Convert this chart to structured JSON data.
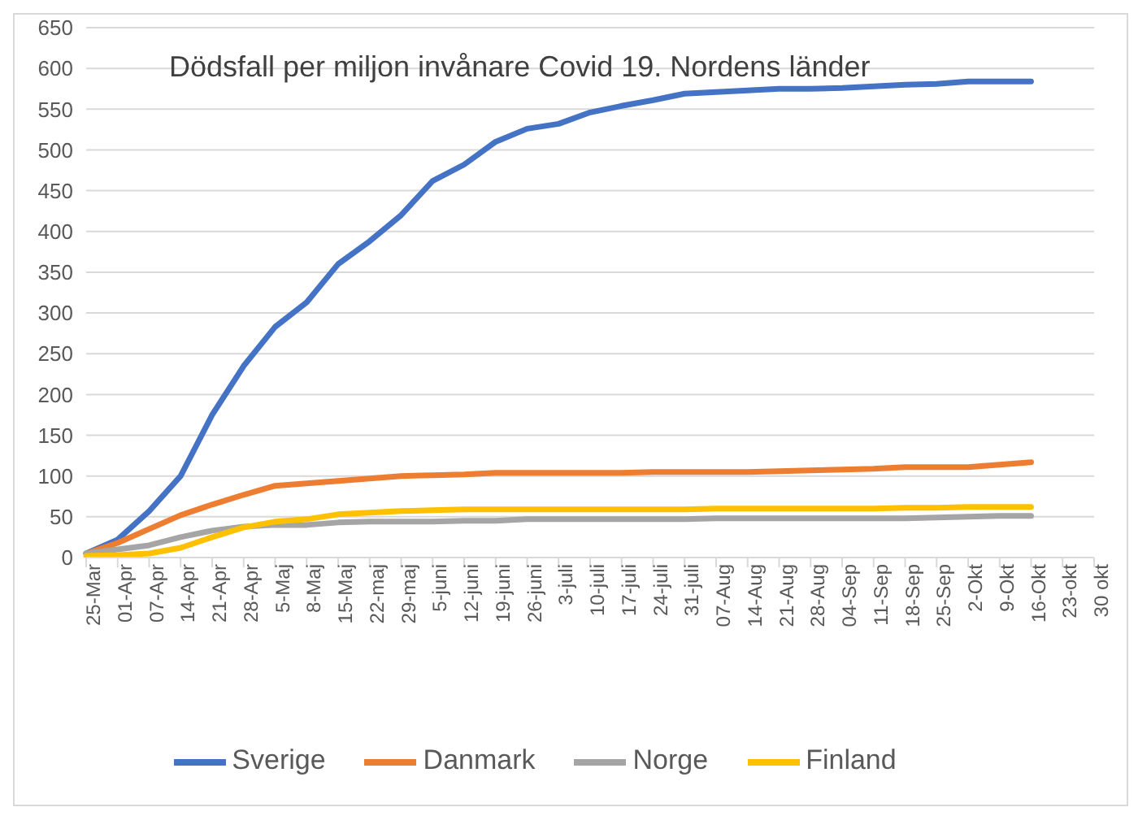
{
  "chart_data": {
    "type": "line",
    "title": "Dödsfall per miljon invånare Covid 19. Nordens länder",
    "categories": [
      "25-Mar",
      "01-Apr",
      "07-Apr",
      "14-Apr",
      "21-Apr",
      "28-Apr",
      "5-Maj",
      "8-Maj",
      "15-Maj",
      "22-maj",
      "29-maj",
      "5-juni",
      "12-juni",
      "19-juni",
      "26-juni",
      "3-juli",
      "10-juli",
      "17-juli",
      "24-juli",
      "31-juli",
      "07-Aug",
      "14-Aug",
      "21-Aug",
      "28-Aug",
      "04-Sep",
      "11-Sep",
      "18-Sep",
      "25-Sep",
      "2-Okt",
      "9-Okt",
      "16-Okt",
      "23-okt",
      "30 okt"
    ],
    "series": [
      {
        "name": "Sverige",
        "color": "#4472c4",
        "values": [
          5,
          22,
          57,
          100,
          175,
          235,
          283,
          313,
          360,
          388,
          420,
          462,
          482,
          510,
          526,
          532,
          546,
          554,
          561,
          569,
          571,
          573,
          575,
          575,
          576,
          578,
          580,
          581,
          584,
          584,
          584,
          null,
          null
        ]
      },
      {
        "name": "Danmark",
        "color": "#ed7d31",
        "values": [
          5,
          18,
          35,
          52,
          65,
          77,
          88,
          91,
          94,
          97,
          100,
          101,
          102,
          104,
          104,
          104,
          104,
          104,
          105,
          105,
          105,
          105,
          106,
          107,
          108,
          109,
          111,
          111,
          111,
          114,
          117,
          null,
          null
        ]
      },
      {
        "name": "Norge",
        "color": "#a5a5a5",
        "values": [
          5,
          10,
          15,
          25,
          33,
          38,
          40,
          40,
          43,
          44,
          44,
          44,
          45,
          45,
          47,
          47,
          47,
          47,
          47,
          47,
          48,
          48,
          48,
          48,
          48,
          48,
          48,
          49,
          50,
          51,
          51,
          null,
          null
        ]
      },
      {
        "name": "Finland",
        "color": "#ffc000",
        "values": [
          2,
          3,
          5,
          12,
          25,
          37,
          44,
          47,
          53,
          55,
          57,
          58,
          59,
          59,
          59,
          59,
          59,
          59,
          59,
          59,
          60,
          60,
          60,
          60,
          60,
          60,
          61,
          61,
          62,
          62,
          62,
          null,
          null
        ]
      }
    ],
    "ylim": [
      0,
      650
    ],
    "yticks": [
      0,
      50,
      100,
      150,
      200,
      250,
      300,
      350,
      400,
      450,
      500,
      550,
      600,
      650
    ],
    "grid": "y",
    "legend": "bottom",
    "marker": "none",
    "line_style": "solid"
  }
}
